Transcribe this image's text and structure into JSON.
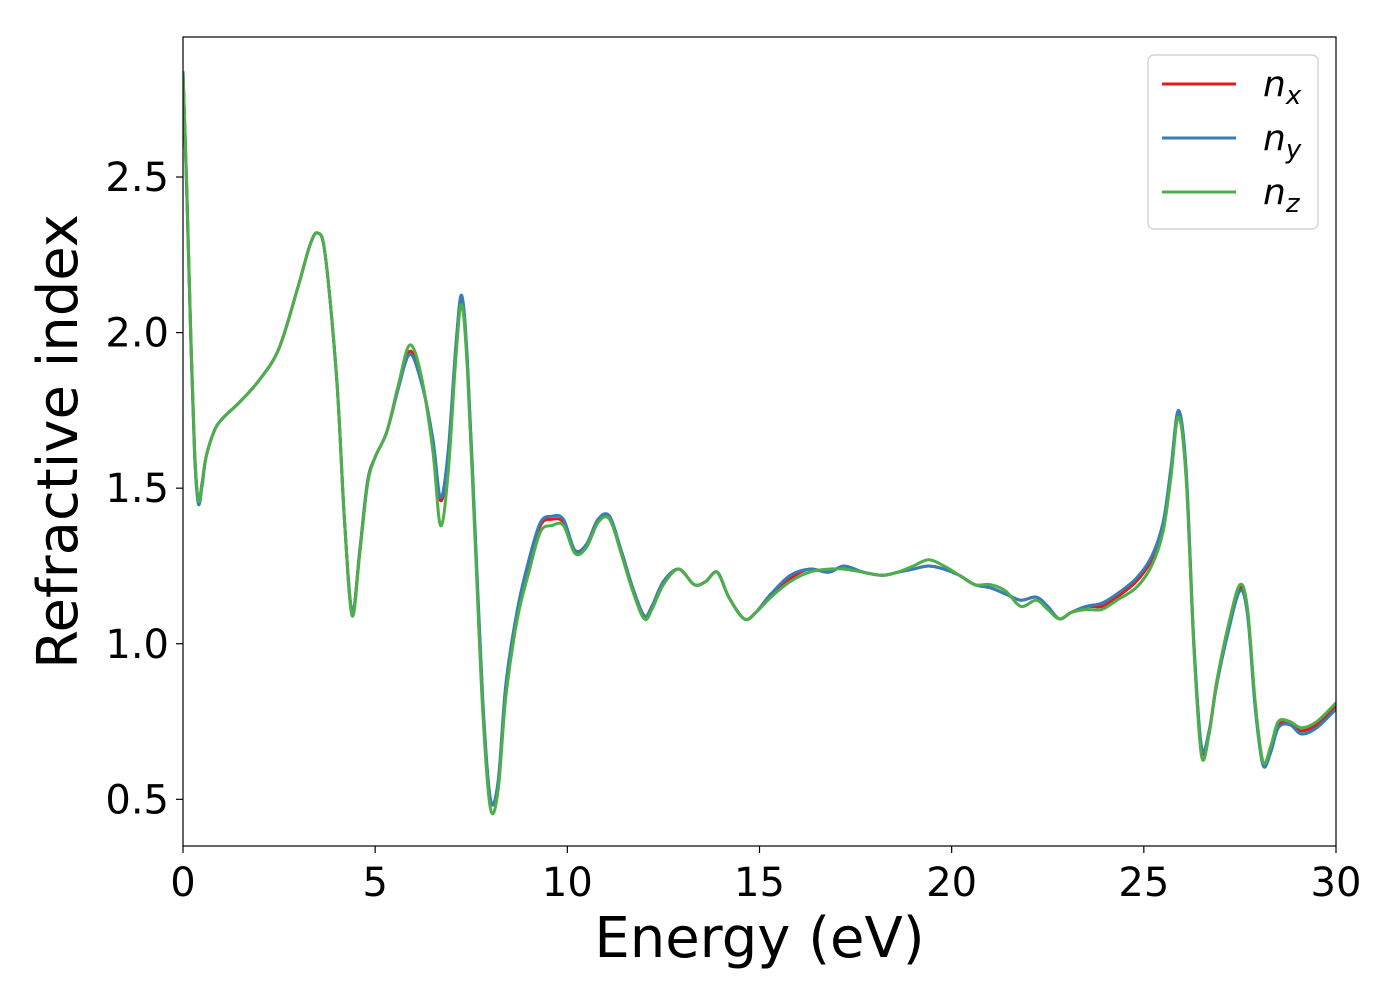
{
  "chart_data": {
    "type": "line",
    "xlabel": "Energy (eV)",
    "ylabel": "Refractive index",
    "xlim": [
      0,
      30
    ],
    "ylim": [
      0.35,
      2.95
    ],
    "xticks": [
      0,
      5,
      10,
      15,
      20,
      25,
      30
    ],
    "xtick_labels": [
      "0",
      "5",
      "10",
      "15",
      "20",
      "25",
      "30"
    ],
    "yticks": [
      0.5,
      1.0,
      1.5,
      2.0,
      2.5
    ],
    "ytick_labels": [
      "0.5",
      "1.0",
      "1.5",
      "2.0",
      "2.5"
    ],
    "grid": false,
    "legend_position": "top-right",
    "colors": {
      "nx": "#e41a1c",
      "ny": "#377eb8",
      "nz": "#4daf4a"
    },
    "x": [
      0,
      0.1,
      0.2,
      0.3,
      0.4,
      0.5,
      0.6,
      0.8,
      1.0,
      1.5,
      2.0,
      2.5,
      3.0,
      3.3,
      3.5,
      3.7,
      4.0,
      4.2,
      4.4,
      4.6,
      4.8,
      5.0,
      5.3,
      5.6,
      5.9,
      6.2,
      6.5,
      6.7,
      6.9,
      7.1,
      7.25,
      7.4,
      7.6,
      7.8,
      8.0,
      8.2,
      8.4,
      8.7,
      9.0,
      9.3,
      9.6,
      9.9,
      10.2,
      10.5,
      10.8,
      11.1,
      11.4,
      11.7,
      12.0,
      12.2,
      12.5,
      12.9,
      13.3,
      13.6,
      13.9,
      14.2,
      14.6,
      14.9,
      15.3,
      15.8,
      16.3,
      16.8,
      17.2,
      17.7,
      18.2,
      18.6,
      19.0,
      19.4,
      19.8,
      20.2,
      20.6,
      21.0,
      21.4,
      21.8,
      22.2,
      22.5,
      22.8,
      23.1,
      23.5,
      23.9,
      24.3,
      24.8,
      25.2,
      25.5,
      25.7,
      25.9,
      26.1,
      26.3,
      26.5,
      26.7,
      26.9,
      27.2,
      27.5,
      27.7,
      27.9,
      28.1,
      28.3,
      28.5,
      28.8,
      29.1,
      29.5,
      30.0
    ],
    "series": [
      {
        "name": "n_x",
        "values": [
          2.84,
          2.45,
          2.0,
          1.62,
          1.46,
          1.52,
          1.6,
          1.68,
          1.72,
          1.78,
          1.85,
          1.95,
          2.15,
          2.28,
          2.32,
          2.25,
          1.85,
          1.4,
          1.1,
          1.3,
          1.52,
          1.6,
          1.68,
          1.82,
          1.94,
          1.85,
          1.65,
          1.46,
          1.6,
          1.95,
          2.11,
          1.9,
          1.35,
          0.8,
          0.5,
          0.55,
          0.85,
          1.1,
          1.25,
          1.38,
          1.4,
          1.39,
          1.3,
          1.32,
          1.4,
          1.4,
          1.3,
          1.18,
          1.09,
          1.12,
          1.2,
          1.24,
          1.19,
          1.2,
          1.23,
          1.15,
          1.08,
          1.1,
          1.16,
          1.21,
          1.24,
          1.23,
          1.25,
          1.23,
          1.22,
          1.23,
          1.24,
          1.25,
          1.24,
          1.22,
          1.19,
          1.18,
          1.16,
          1.14,
          1.15,
          1.12,
          1.08,
          1.1,
          1.12,
          1.12,
          1.15,
          1.2,
          1.27,
          1.38,
          1.55,
          1.74,
          1.55,
          1.0,
          0.66,
          0.72,
          0.88,
          1.05,
          1.18,
          1.1,
          0.8,
          0.62,
          0.66,
          0.74,
          0.74,
          0.72,
          0.74,
          0.8
        ]
      },
      {
        "name": "n_y",
        "values": [
          2.84,
          2.44,
          1.99,
          1.61,
          1.45,
          1.51,
          1.6,
          1.68,
          1.72,
          1.78,
          1.85,
          1.95,
          2.15,
          2.28,
          2.32,
          2.25,
          1.85,
          1.4,
          1.1,
          1.3,
          1.52,
          1.6,
          1.68,
          1.82,
          1.93,
          1.84,
          1.66,
          1.47,
          1.62,
          1.96,
          2.12,
          1.91,
          1.37,
          0.82,
          0.5,
          0.56,
          0.87,
          1.11,
          1.27,
          1.39,
          1.41,
          1.4,
          1.3,
          1.32,
          1.4,
          1.41,
          1.3,
          1.18,
          1.09,
          1.12,
          1.2,
          1.24,
          1.19,
          1.2,
          1.23,
          1.15,
          1.08,
          1.1,
          1.16,
          1.22,
          1.24,
          1.23,
          1.25,
          1.23,
          1.22,
          1.23,
          1.24,
          1.25,
          1.24,
          1.22,
          1.19,
          1.18,
          1.16,
          1.14,
          1.15,
          1.12,
          1.08,
          1.1,
          1.12,
          1.13,
          1.16,
          1.21,
          1.28,
          1.39,
          1.56,
          1.75,
          1.56,
          1.01,
          0.67,
          0.72,
          0.87,
          1.04,
          1.17,
          1.09,
          0.79,
          0.61,
          0.65,
          0.73,
          0.74,
          0.71,
          0.73,
          0.79
        ]
      },
      {
        "name": "n_z",
        "values": [
          2.84,
          2.46,
          2.01,
          1.63,
          1.46,
          1.52,
          1.6,
          1.68,
          1.72,
          1.78,
          1.85,
          1.95,
          2.15,
          2.28,
          2.32,
          2.25,
          1.85,
          1.4,
          1.09,
          1.29,
          1.51,
          1.6,
          1.68,
          1.83,
          1.96,
          1.86,
          1.62,
          1.38,
          1.55,
          1.92,
          2.09,
          1.88,
          1.33,
          0.78,
          0.47,
          0.53,
          0.83,
          1.08,
          1.23,
          1.36,
          1.38,
          1.38,
          1.29,
          1.31,
          1.39,
          1.4,
          1.29,
          1.17,
          1.08,
          1.11,
          1.19,
          1.24,
          1.19,
          1.2,
          1.23,
          1.15,
          1.08,
          1.1,
          1.15,
          1.2,
          1.23,
          1.24,
          1.24,
          1.23,
          1.22,
          1.23,
          1.25,
          1.27,
          1.25,
          1.22,
          1.19,
          1.19,
          1.17,
          1.12,
          1.14,
          1.11,
          1.08,
          1.1,
          1.11,
          1.11,
          1.14,
          1.18,
          1.25,
          1.36,
          1.53,
          1.73,
          1.53,
          0.99,
          0.64,
          0.71,
          0.88,
          1.06,
          1.19,
          1.11,
          0.81,
          0.62,
          0.67,
          0.75,
          0.75,
          0.73,
          0.75,
          0.81
        ]
      }
    ]
  }
}
